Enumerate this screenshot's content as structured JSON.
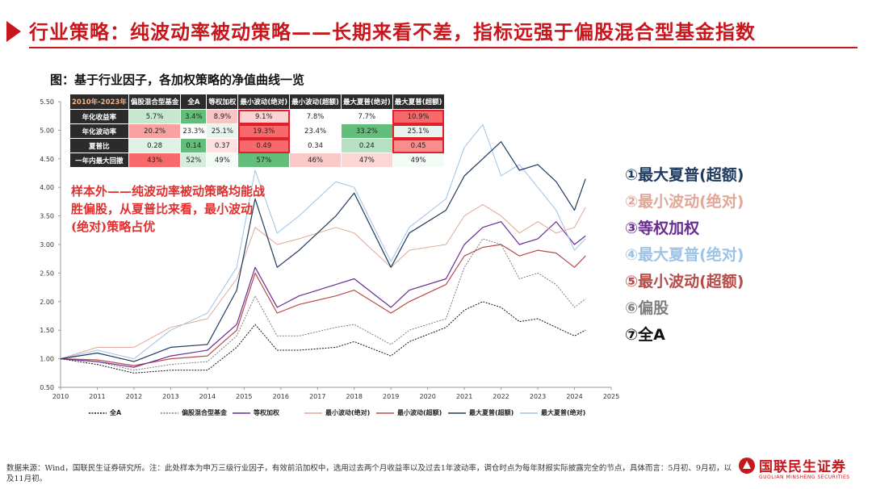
{
  "header": {
    "title": "行业策略：纯波动率被动策略——长期来看不差，指标远强于偏股混合型基金指数"
  },
  "subtitle": "图：基于行业因子，各加权策略的净值曲线一览",
  "annotation": "样本外——纯波动率被动策略均能战胜偏股，从夏普比来看，最小波动(绝对)策略占优",
  "right_legend": [
    {
      "label": "①最大夏普(超额)",
      "color": "#1f3a5f"
    },
    {
      "label": "②最小波动(绝对)",
      "color": "#e0a898"
    },
    {
      "label": "③等权加权",
      "color": "#6a2c91"
    },
    {
      "label": "④最大夏普(绝对)",
      "color": "#9dc3e6"
    },
    {
      "label": "⑤最小波动(超额)",
      "color": "#b84a4a"
    },
    {
      "label": "⑥偏股",
      "color": "#7f7f7f"
    },
    {
      "label": "⑦全A",
      "color": "#111111"
    }
  ],
  "table": {
    "corner": "2010年-2023年",
    "columns": [
      "偏股混合型基金",
      "全A",
      "等权加权",
      "最小波动(绝对)",
      "最小波动(超额)",
      "最大夏普(绝对)",
      "最大夏普(超额)"
    ],
    "rows": [
      {
        "label": "年化收益率",
        "cells": [
          "5.7%",
          "3.4%",
          "8.9%",
          "9.1%",
          "7.8%",
          "7.7%",
          "10.9%"
        ],
        "bg": [
          "#c6e8cf",
          "#63be7b",
          "#f8c4c4",
          "#fbd3d3",
          "#ffffff",
          "#ffffff",
          "#f8696b"
        ]
      },
      {
        "label": "年化波动率",
        "cells": [
          "20.2%",
          "23.3%",
          "25.1%",
          "19.3%",
          "23.4%",
          "33.2%",
          "25.1%"
        ],
        "bg": [
          "#f9a0a1",
          "#ffffff",
          "#e8f5ec",
          "#f8696b",
          "#ffffff",
          "#63be7b",
          "#e8f5ec"
        ]
      },
      {
        "label": "夏普比",
        "cells": [
          "0.28",
          "0.14",
          "0.37",
          "0.49",
          "0.34",
          "0.24",
          "0.45"
        ],
        "bg": [
          "#e0f2e6",
          "#63be7b",
          "#fde0e0",
          "#f8696b",
          "#ffffff",
          "#b5e0c1",
          "#f98d8e"
        ]
      },
      {
        "label": "一年内最大回撤",
        "cells": [
          "43%",
          "52%",
          "49%",
          "57%",
          "46%",
          "47%",
          "49%"
        ],
        "bg": [
          "#f8696b",
          "#d4eedb",
          "#f4faf6",
          "#63be7b",
          "#fbc8c8",
          "#fcd5d5",
          "#f4faf6"
        ]
      }
    ]
  },
  "bottom_legend": [
    {
      "label": "全A",
      "color": "#111111",
      "dash": "2,1.5"
    },
    {
      "label": "偏股混合型基金",
      "color": "#7f7f7f",
      "dash": "2,1.5"
    },
    {
      "label": "等权加权",
      "color": "#6a2c91",
      "dash": ""
    },
    {
      "label": "最小波动(绝对)",
      "color": "#e0a898",
      "dash": ""
    },
    {
      "label": "最小波动(超额)",
      "color": "#b84a4a",
      "dash": ""
    },
    {
      "label": "最大夏普(超额)",
      "color": "#1f3a5f",
      "dash": ""
    },
    {
      "label": "最大夏普(绝对)",
      "color": "#9dc3e6",
      "dash": ""
    }
  ],
  "chart_data": {
    "type": "line",
    "xlabel": "",
    "ylabel": "",
    "xlim": [
      2010,
      2025
    ],
    "ylim": [
      0.5,
      5.5
    ],
    "xticks": [
      "2010",
      "2011",
      "2012",
      "2013",
      "2014",
      "2015",
      "2016",
      "2017",
      "2018",
      "2019",
      "2020",
      "2021",
      "2022",
      "2023",
      "2024",
      "2025"
    ],
    "yticks": [
      "0.50",
      "1.00",
      "1.50",
      "2.00",
      "2.50",
      "3.00",
      "3.50",
      "4.00",
      "4.50",
      "5.00",
      "5.50"
    ],
    "x": [
      2010.0,
      2011.0,
      2012.0,
      2013.0,
      2014.0,
      2014.8,
      2015.3,
      2015.9,
      2016.5,
      2017.5,
      2018.0,
      2019.0,
      2019.5,
      2020.5,
      2021.0,
      2021.5,
      2022.0,
      2022.5,
      2023.0,
      2023.5,
      2024.0,
      2024.3
    ],
    "series": [
      {
        "name": "最大夏普(超额)",
        "color": "#1f3a5f",
        "width": 1.2,
        "values": [
          1.0,
          1.1,
          0.95,
          1.2,
          1.25,
          2.2,
          3.8,
          2.6,
          2.9,
          3.5,
          3.9,
          2.6,
          3.2,
          3.6,
          4.2,
          4.5,
          4.8,
          4.3,
          4.4,
          4.1,
          3.6,
          4.15
        ]
      },
      {
        "name": "最大夏普(绝对)",
        "color": "#9dc3e6",
        "width": 1.0,
        "values": [
          1.0,
          1.15,
          1.0,
          1.5,
          1.8,
          2.6,
          4.3,
          3.2,
          3.5,
          4.1,
          4.0,
          2.7,
          3.3,
          3.8,
          4.7,
          5.1,
          4.2,
          4.4,
          4.0,
          3.6,
          2.9,
          3.1
        ]
      },
      {
        "name": "最小波动(绝对)",
        "color": "#e0a898",
        "width": 1.0,
        "values": [
          1.0,
          1.2,
          1.2,
          1.55,
          1.7,
          2.4,
          3.3,
          3.0,
          3.1,
          3.3,
          3.2,
          2.6,
          2.9,
          3.0,
          3.5,
          3.7,
          3.5,
          3.2,
          3.4,
          3.2,
          3.3,
          3.65
        ]
      },
      {
        "name": "等权加权",
        "color": "#6a2c91",
        "width": 1.2,
        "values": [
          1.0,
          0.95,
          0.85,
          1.05,
          1.15,
          1.6,
          2.6,
          1.9,
          2.1,
          2.3,
          2.4,
          1.9,
          2.2,
          2.4,
          3.0,
          3.3,
          3.4,
          3.0,
          3.1,
          3.4,
          3.0,
          3.15
        ]
      },
      {
        "name": "最小波动(超额)",
        "color": "#b84a4a",
        "width": 1.2,
        "values": [
          1.0,
          0.98,
          0.88,
          1.0,
          1.05,
          1.5,
          2.5,
          1.8,
          1.95,
          2.1,
          2.2,
          1.8,
          2.0,
          2.3,
          2.8,
          2.95,
          3.0,
          2.8,
          2.9,
          2.85,
          2.6,
          2.8
        ]
      },
      {
        "name": "偏股混合型基金",
        "color": "#7f7f7f",
        "width": 1.0,
        "dash": "2,1.5",
        "values": [
          1.0,
          0.95,
          0.8,
          0.9,
          0.95,
          1.4,
          2.1,
          1.4,
          1.4,
          1.55,
          1.6,
          1.25,
          1.5,
          1.7,
          2.6,
          3.1,
          3.0,
          2.4,
          2.5,
          2.3,
          1.9,
          2.05
        ]
      },
      {
        "name": "全A",
        "color": "#111111",
        "width": 1.0,
        "dash": "2,1.5",
        "values": [
          1.0,
          0.9,
          0.75,
          0.8,
          0.8,
          1.2,
          1.6,
          1.15,
          1.15,
          1.2,
          1.3,
          1.05,
          1.3,
          1.55,
          1.85,
          2.0,
          1.9,
          1.65,
          1.7,
          1.55,
          1.4,
          1.5
        ]
      }
    ]
  },
  "footer": {
    "note": "数据来源：Wind，国联民生证券研究所。注：此处样本为申万三级行业因子，有效前沿加权中，选用过去两个月收益率以及过去1年波动率，调仓时点为每年财报实际披露完全的节点，具体而言：5月初、9月初，以及11月初。",
    "logo_name": "国联民生证券",
    "logo_en": "GUOLIAN MINSHENG SECURITIES"
  }
}
